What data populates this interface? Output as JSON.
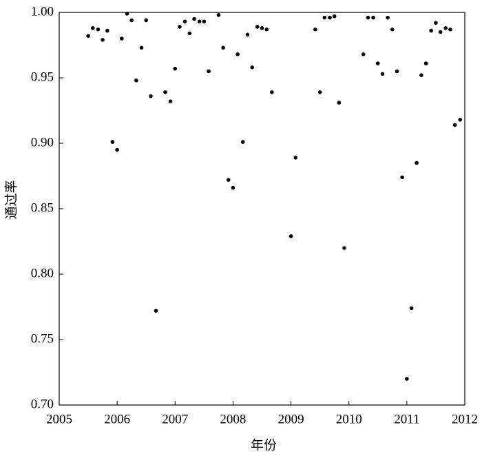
{
  "chart_data": {
    "type": "scatter",
    "xlabel": "年份",
    "ylabel": "通过率",
    "color": "#000000",
    "x": [
      2005.5,
      2005.58,
      2005.67,
      2005.75,
      2005.83,
      2005.92,
      2006.0,
      2006.08,
      2006.17,
      2006.25,
      2006.33,
      2006.42,
      2006.5,
      2006.58,
      2006.67,
      2006.83,
      2006.92,
      2007.0,
      2007.08,
      2007.17,
      2007.25,
      2007.33,
      2007.42,
      2007.5,
      2007.58,
      2007.75,
      2007.83,
      2007.92,
      2008.0,
      2008.08,
      2008.17,
      2008.25,
      2008.33,
      2008.42,
      2008.5,
      2008.58,
      2008.67,
      2009.0,
      2009.08,
      2009.42,
      2009.5,
      2009.58,
      2009.67,
      2009.75,
      2009.83,
      2009.92,
      2010.25,
      2010.33,
      2010.42,
      2010.5,
      2010.58,
      2010.67,
      2010.75,
      2010.83,
      2010.92,
      2011.0,
      2011.08,
      2011.17,
      2011.25,
      2011.33,
      2011.42,
      2011.5,
      2011.58,
      2011.67,
      2011.75,
      2011.83,
      2011.92
    ],
    "y": [
      0.982,
      0.988,
      0.987,
      0.979,
      0.986,
      0.901,
      0.895,
      0.98,
      0.999,
      0.994,
      0.948,
      0.973,
      0.994,
      0.936,
      0.772,
      0.939,
      0.932,
      0.957,
      0.989,
      0.993,
      0.984,
      0.995,
      0.993,
      0.993,
      0.955,
      0.998,
      0.973,
      0.872,
      0.866,
      0.968,
      0.901,
      0.983,
      0.958,
      0.989,
      0.988,
      0.987,
      0.939,
      0.829,
      0.889,
      0.987,
      0.939,
      0.996,
      0.996,
      0.997,
      0.931,
      0.82,
      0.968,
      0.996,
      0.996,
      0.961,
      0.953,
      0.996,
      0.987,
      0.955,
      0.874,
      0.72,
      0.774,
      0.885,
      0.952,
      0.961,
      0.986,
      0.992,
      0.985,
      0.988,
      0.987,
      0.914,
      0.918
    ],
    "xlim": [
      2005,
      2012
    ],
    "xticks": [
      2005,
      2006,
      2007,
      2008,
      2009,
      2010,
      2011,
      2012
    ],
    "ylim": [
      0.7,
      1.0
    ],
    "yticks": [
      {
        "value": 0.7,
        "label": "0.70"
      },
      0.75,
      {
        "value": 0.8,
        "label": "0.80"
      },
      0.85,
      {
        "value": 0.9,
        "label": "0.90"
      },
      0.95,
      {
        "value": 1.0,
        "label": "1.00"
      }
    ]
  }
}
